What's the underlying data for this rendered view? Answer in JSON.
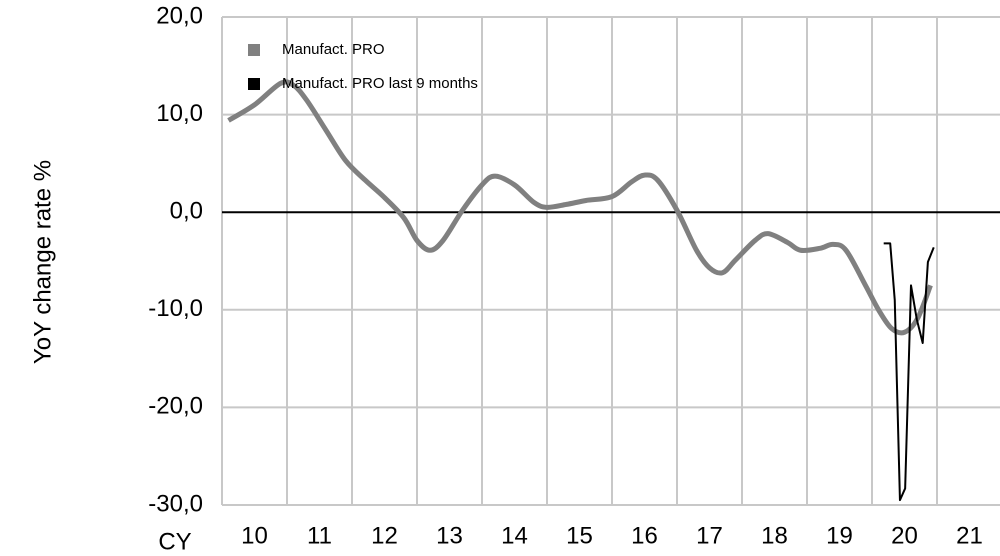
{
  "chart_data": {
    "type": "line",
    "y_label": "YoY change rate %",
    "x_label": "CY",
    "xlim": [
      2010,
      2022
    ],
    "xticks": [
      {
        "value": 2010,
        "label": "10"
      },
      {
        "value": 2011,
        "label": "11"
      },
      {
        "value": 2012,
        "label": "12"
      },
      {
        "value": 2013,
        "label": "13"
      },
      {
        "value": 2014,
        "label": "14"
      },
      {
        "value": 2015,
        "label": "15"
      },
      {
        "value": 2016,
        "label": "16"
      },
      {
        "value": 2017,
        "label": "17"
      },
      {
        "value": 2018,
        "label": "18"
      },
      {
        "value": 2019,
        "label": "19"
      },
      {
        "value": 2020,
        "label": "20"
      },
      {
        "value": 2021,
        "label": "21"
      }
    ],
    "ylim": [
      -30,
      20
    ],
    "yticks": [
      {
        "value": -30,
        "label": "-30,0"
      },
      {
        "value": -20,
        "label": "-20,0"
      },
      {
        "value": -10,
        "label": "-10,0"
      },
      {
        "value": 0,
        "label": "0,0"
      },
      {
        "value": 10,
        "label": "10,0"
      },
      {
        "value": 20,
        "label": "20,0"
      }
    ],
    "grid": true,
    "legend": "upper left",
    "series": [
      {
        "name": "Manufact. PRO",
        "color": "#808080",
        "smooth": true,
        "x": [
          2010.1,
          2010.5,
          2010.9,
          2011.1,
          2011.3,
          2011.6,
          2011.9,
          2012.2,
          2012.5,
          2012.8,
          2013.0,
          2013.2,
          2013.4,
          2013.7,
          2014.0,
          2014.2,
          2014.5,
          2014.8,
          2015.0,
          2015.3,
          2015.6,
          2016.0,
          2016.3,
          2016.5,
          2016.7,
          2017.0,
          2017.3,
          2017.5,
          2017.7,
          2017.9,
          2018.2,
          2018.4,
          2018.7,
          2018.9,
          2019.2,
          2019.4,
          2019.6,
          2019.9,
          2020.1,
          2020.3,
          2020.5,
          2020.7,
          2020.9
        ],
        "values": [
          9.4,
          11,
          13.2,
          13,
          11.5,
          8.4,
          5.3,
          3.3,
          1.5,
          -0.6,
          -2.9,
          -3.9,
          -2.9,
          0.2,
          2.8,
          3.7,
          2.8,
          1.0,
          0.5,
          0.8,
          1.2,
          1.6,
          3.1,
          3.8,
          3.3,
          0.2,
          -3.9,
          -5.7,
          -6.2,
          -4.9,
          -2.9,
          -2.2,
          -3.1,
          -3.9,
          -3.7,
          -3.3,
          -3.9,
          -7.5,
          -10,
          -11.9,
          -12.3,
          -10.9,
          -7.5
        ]
      },
      {
        "name": "Manufact. PRO last 9 months",
        "color": "#000000",
        "smooth": false,
        "x": [
          2020.18,
          2020.28,
          2020.35,
          2020.43,
          2020.51,
          2020.6,
          2020.69,
          2020.78,
          2020.86,
          2020.95
        ],
        "values": [
          -3.2,
          -3.2,
          -9,
          -29.5,
          -28.3,
          -7.5,
          -11,
          -13.4,
          -5.1,
          -3.6
        ]
      }
    ]
  }
}
